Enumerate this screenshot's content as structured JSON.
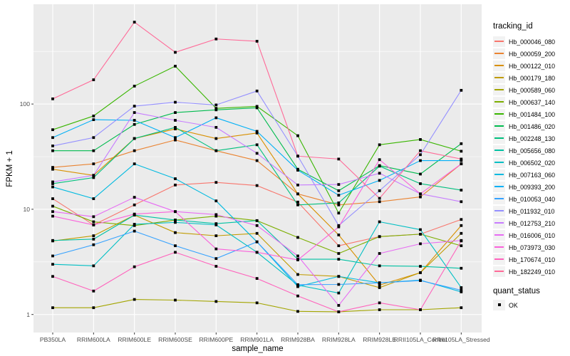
{
  "figure": {
    "kind": "ggplot2 line chart",
    "background": "#ffffff",
    "panel_background": "#ebebeb",
    "grid_color": "#ffffff",
    "tick_text_color": "#4d4d4d",
    "marker_color": "#000000",
    "legend_key_background": "#f2f2f2"
  },
  "chart_data": {
    "type": "line",
    "title": "",
    "xlabel": "sample_name",
    "ylabel": "FPKM + 1",
    "x_categories": [
      "PB350LA",
      "RRIM600LA",
      "RRIM600LE",
      "RRIM600SE",
      "RRIM600PE",
      "RRIM901LA",
      "RRIM928BA",
      "RRIM928LA",
      "RRIM928LE",
      "RRII105LA_Control",
      "RRII105LA_Stressed"
    ],
    "y_scale": "log10",
    "y_ticks": [
      {
        "label": "1",
        "value": 1
      },
      {
        "label": "10",
        "value": 10
      },
      {
        "label": "100",
        "value": 100
      }
    ],
    "y_minor_ticks": [
      3.1623,
      31.623,
      316.23
    ],
    "ylim": [
      0.72,
      900
    ],
    "grid": "white major+minor horizontal, white vertical at each category",
    "marker": "black square",
    "legend_position": "right",
    "legend_title": "tracking_id",
    "point_legend": {
      "title": "quant_status",
      "items": [
        {
          "label": "OK",
          "marker": "black-square"
        }
      ]
    },
    "series": [
      {
        "name": "Hb_000046_080",
        "color": "#F8766D",
        "values": [
          12.6,
          7.1,
          11,
          17,
          18,
          16.8,
          11.7,
          4.5,
          5.5,
          5.8,
          8
        ]
      },
      {
        "name": "Hb_000059_200",
        "color": "#EA8331",
        "values": [
          25,
          27,
          36,
          45.5,
          36,
          29,
          14,
          11,
          11.8,
          13.1,
          27
        ]
      },
      {
        "name": "Hb_000122_010",
        "color": "#D89000",
        "values": [
          24,
          21,
          47,
          58,
          47,
          53,
          14,
          5.7,
          1.9,
          2.5,
          7
        ]
      },
      {
        "name": "Hb_000179_180",
        "color": "#C09B00",
        "values": [
          5.0,
          5.6,
          8.8,
          6.0,
          5.6,
          5.9,
          2.4,
          2.3,
          1.8,
          2.5,
          5.9
        ]
      },
      {
        "name": "Hb_000589_060",
        "color": "#A3A500",
        "values": [
          1.16,
          1.16,
          1.39,
          1.37,
          1.33,
          1.29,
          1.07,
          1.06,
          1.11,
          1.11,
          1.16
        ]
      },
      {
        "name": "Hb_000637_140",
        "color": "#7CAE00",
        "values": [
          10.7,
          7.6,
          7.0,
          7.9,
          8.6,
          7.8,
          5.4,
          3.8,
          5.5,
          5.8,
          4.5
        ]
      },
      {
        "name": "Hb_001484_100",
        "color": "#39B600",
        "values": [
          57,
          77,
          148,
          229,
          91,
          95,
          50,
          9.2,
          41,
          46,
          35.6
        ]
      },
      {
        "name": "Hb_001486_020",
        "color": "#00BB4E",
        "values": [
          36,
          36,
          64,
          83,
          88,
          92,
          24,
          15,
          26,
          21.6,
          42
        ]
      },
      {
        "name": "Hb_002248_130",
        "color": "#00BF7D",
        "values": [
          17.5,
          20,
          47,
          60,
          36,
          41,
          11,
          11.5,
          25.7,
          17.5,
          15.2
        ]
      },
      {
        "name": "Hb_005656_080",
        "color": "#00C1A3",
        "values": [
          5.05,
          5.2,
          8.8,
          7.9,
          7.3,
          7.8,
          3.35,
          3.35,
          2.9,
          2.87,
          2.75
        ]
      },
      {
        "name": "Hb_006502_020",
        "color": "#00BFC4",
        "values": [
          3.0,
          2.9,
          7.2,
          7.5,
          7.1,
          3.9,
          1.9,
          1.6,
          7.6,
          6.4,
          1.8
        ]
      },
      {
        "name": "Hb_007163_060",
        "color": "#00BAE0",
        "values": [
          16.3,
          12.6,
          27,
          19.5,
          12,
          4.9,
          1.84,
          2.3,
          2.0,
          2.12,
          1.64
        ]
      },
      {
        "name": "Hb_009393_200",
        "color": "#00B0F6",
        "values": [
          48,
          71,
          70,
          48,
          74,
          55,
          23.5,
          13.6,
          18.8,
          29,
          29
        ]
      },
      {
        "name": "Hb_010053_040",
        "color": "#35A2FF",
        "values": [
          3.6,
          4.6,
          6.2,
          4.5,
          3.4,
          4.9,
          1.92,
          1.93,
          2.0,
          2.1,
          1.7
        ]
      },
      {
        "name": "Hb_011932_010",
        "color": "#9590FF",
        "values": [
          40,
          48,
          95.5,
          104,
          98,
          133,
          32,
          7,
          15,
          33,
          135
        ]
      },
      {
        "name": "Hb_012753_210",
        "color": "#C77CFF",
        "values": [
          18.2,
          21,
          83,
          70,
          60,
          34,
          17,
          17.2,
          22,
          14,
          11.8
        ]
      },
      {
        "name": "Hb_016006_010",
        "color": "#E76BF3",
        "values": [
          9.5,
          8.5,
          13,
          9.5,
          8.9,
          7.0,
          3.6,
          1.22,
          3.8,
          4.7,
          5.05
        ]
      },
      {
        "name": "Hb_073973_030",
        "color": "#FA62DB",
        "values": [
          8.6,
          7.1,
          9.0,
          9.5,
          4.2,
          3.9,
          3.3,
          6.8,
          29.6,
          14,
          27
        ]
      },
      {
        "name": "Hb_170674_010",
        "color": "#FF62BC",
        "values": [
          2.3,
          1.67,
          2.84,
          3.9,
          2.87,
          2.2,
          1.5,
          1.06,
          1.29,
          1.11,
          5.0
        ]
      },
      {
        "name": "Hb_182249_010",
        "color": "#FF6A98",
        "values": [
          112,
          170,
          600,
          310,
          415,
          395,
          32,
          30,
          12.7,
          36,
          30
        ]
      }
    ]
  }
}
